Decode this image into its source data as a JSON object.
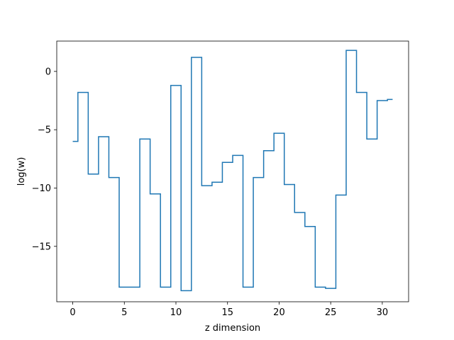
{
  "chart_data": {
    "type": "line",
    "style": "step-mid",
    "title": "",
    "xlabel": "z dimension",
    "ylabel": "log(w)",
    "xlim": [
      -1.55,
      32.55
    ],
    "ylim": [
      -19.75,
      2.6
    ],
    "xticks": [
      0,
      5,
      10,
      15,
      20,
      25,
      30
    ],
    "yticks": [
      -15,
      -10,
      -5,
      0
    ],
    "ytick_labels": [
      "−15",
      "−10",
      "−5",
      "0"
    ],
    "grid": false,
    "legend": "none",
    "colors": {
      "line": "#1f77b4",
      "axes": "#000000",
      "background": "#ffffff"
    },
    "series": [
      {
        "x": [
          0,
          1,
          2,
          3,
          4,
          5,
          6,
          7,
          8,
          9,
          10,
          11,
          12,
          13,
          14,
          15,
          16,
          17,
          18,
          19,
          20,
          21,
          22,
          23,
          24,
          25,
          26,
          27,
          28,
          29,
          30,
          31
        ],
        "y": [
          -6.0,
          -1.8,
          -8.8,
          -5.6,
          -9.1,
          -18.5,
          -18.5,
          -5.8,
          -10.5,
          -18.5,
          -1.2,
          -18.8,
          1.2,
          -9.8,
          -9.5,
          -7.8,
          -7.2,
          -18.5,
          -9.1,
          -6.8,
          -5.3,
          -9.7,
          -12.1,
          -13.3,
          -18.5,
          -18.6,
          -10.6,
          1.8,
          -1.8,
          -5.8,
          -2.5,
          -2.4
        ]
      }
    ]
  }
}
